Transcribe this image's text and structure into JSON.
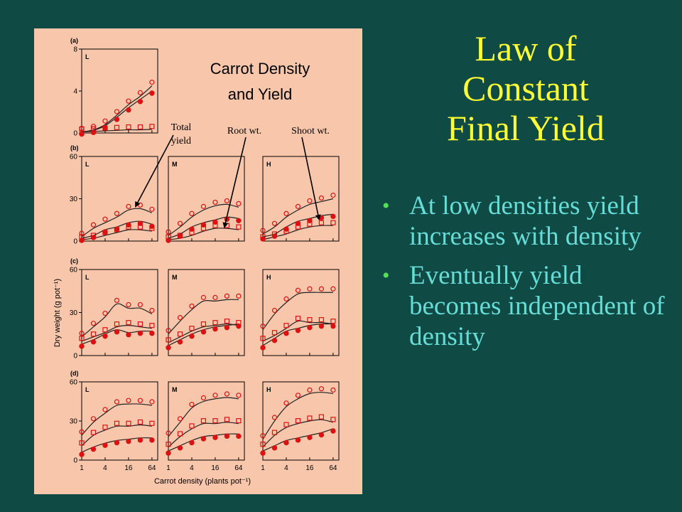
{
  "slide": {
    "title_lines": [
      "Law of",
      "Constant",
      "Final Yield"
    ],
    "bullets": [
      "At low densities yield increases with density",
      "Eventually yield becomes independent of density"
    ],
    "colors": {
      "background": "#0f4a45",
      "title": "#ffff33",
      "bullet_text": "#66ddd6",
      "bullet_marker": "#55dd55",
      "figure_bg": "#f7c6ab",
      "markers": "#dd1111"
    }
  },
  "figure": {
    "title_lines": [
      "Carrot Density",
      "and Yield"
    ],
    "annotations": {
      "total": [
        "Total",
        "yield"
      ],
      "root": "Root wt.",
      "shoot": "Shoot wt."
    },
    "ylabel": "Dry weight (g pot⁻¹)",
    "xlabel": "Carrot density (plants pot⁻¹)"
  },
  "chart_data": {
    "type": "scatter",
    "x_scale": "log",
    "x_ticks": [
      1,
      4,
      16,
      64
    ],
    "x_tick_labels": [
      "1",
      "4",
      "16",
      "64"
    ],
    "x": [
      1,
      2,
      4,
      8,
      16,
      32,
      64
    ],
    "marker_legend": [
      {
        "symbol": "open-circle",
        "meaning": "Total yield"
      },
      {
        "symbol": "filled-circle",
        "meaning": "Root wt."
      },
      {
        "symbol": "open-square",
        "meaning": "Shoot wt."
      }
    ],
    "panel_groups": [
      {
        "label": "(a)",
        "ylim": [
          0,
          8
        ],
        "yticks": [
          0,
          4,
          8
        ],
        "panels": [
          {
            "name": "L",
            "total": [
              0.1,
              0.3,
              0.8,
              1.7,
              2.7,
              3.5,
              4.5
            ],
            "root": [
              0.1,
              0.25,
              0.7,
              1.5,
              2.4,
              3.2,
              4.0
            ],
            "shoot": [
              0.1,
              0.15,
              0.2,
              0.25,
              0.3,
              0.3,
              0.35
            ]
          }
        ]
      },
      {
        "label": "(b)",
        "ylim": [
          0,
          60
        ],
        "yticks": [
          0,
          30,
          60
        ],
        "panels": [
          {
            "name": "L",
            "total": [
              3,
              9,
              13,
              17,
              22,
              23,
              20
            ],
            "root": [
              2,
              4,
              8,
              10,
              13,
              14,
              12
            ],
            "shoot": [
              1,
              2,
              4,
              6,
              8,
              8,
              7
            ]
          },
          {
            "name": "M",
            "total": [
              4,
              10,
              17,
              22,
              25,
              26,
              24
            ],
            "root": [
              2,
              5,
              10,
              13,
              15,
              17,
              16
            ],
            "shoot": [
              1,
              2,
              4,
              7,
              9,
              9,
              8
            ]
          },
          {
            "name": "H",
            "total": [
              5,
              10,
              17,
              22,
              26,
              28,
              30
            ],
            "root": [
              3,
              5,
              10,
              14,
              16,
              18,
              19
            ],
            "shoot": [
              1,
              3,
              5,
              8,
              10,
              11,
              11
            ]
          }
        ]
      },
      {
        "label": "(c)",
        "ylim": [
          0,
          60
        ],
        "yticks": [
          0,
          30,
          60
        ],
        "panels": [
          {
            "name": "L",
            "total": [
              13,
              20,
              27,
              36,
              33,
              33,
              29
            ],
            "root": [
              8,
              11,
              15,
              18,
              16,
              17,
              17
            ],
            "shoot": [
              10,
              13,
              16,
              20,
              21,
              20,
              19
            ]
          },
          {
            "name": "M",
            "total": [
              15,
              24,
              32,
              38,
              38,
              39,
              39
            ],
            "root": [
              7,
              11,
              15,
              18,
              20,
              21,
              22
            ],
            "shoot": [
              9,
              13,
              17,
              20,
              21,
              22,
              21
            ]
          },
          {
            "name": "H",
            "total": [
              18,
              29,
              37,
              43,
              44,
              44,
              44
            ],
            "root": [
              7,
              12,
              17,
              19,
              21,
              22,
              22
            ],
            "shoot": [
              10,
              14,
              19,
              24,
              23,
              23,
              22
            ]
          }
        ]
      },
      {
        "label": "(d)",
        "ylim": [
          0,
          60
        ],
        "yticks": [
          0,
          30,
          60
        ],
        "panels": [
          {
            "name": "L",
            "total": [
              19,
              29,
              36,
              42,
              43,
              43,
              42
            ],
            "root": [
              6,
              10,
              13,
              15,
              16,
              17,
              17
            ],
            "shoot": [
              11,
              19,
              23,
              26,
              26,
              27,
              26
            ]
          },
          {
            "name": "M",
            "total": [
              18,
              29,
              40,
              45,
              47,
              48,
              47
            ],
            "root": [
              7,
              11,
              15,
              18,
              19,
              20,
              20
            ],
            "shoot": [
              10,
              18,
              24,
              28,
              28,
              29,
              28
            ]
          },
          {
            "name": "H",
            "total": [
              16,
              30,
              41,
              47,
              51,
              52,
              51
            ],
            "root": [
              7,
              11,
              15,
              17,
              19,
              21,
              24
            ],
            "shoot": [
              10,
              19,
              25,
              28,
              30,
              31,
              29
            ]
          }
        ]
      }
    ]
  }
}
